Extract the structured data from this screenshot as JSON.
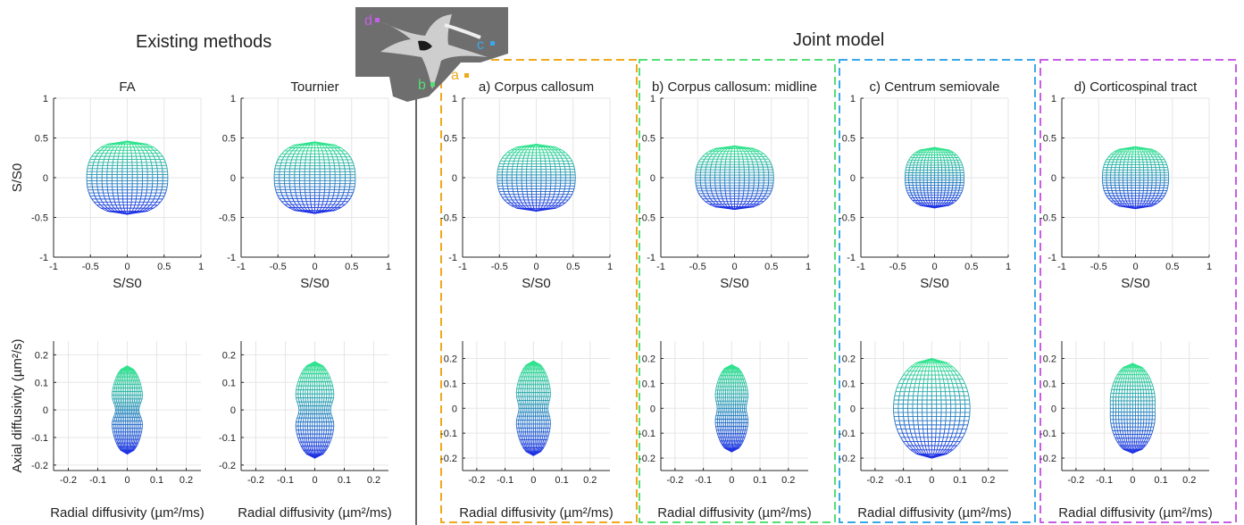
{
  "headings": {
    "existing": "Existing methods",
    "joint": "Joint model"
  },
  "inset": {
    "labels": [
      "a",
      "b",
      "c",
      "d"
    ]
  },
  "colors": {
    "grid": "#e6e6e6",
    "axis": "#262626",
    "mesh_top": "#2ee88a",
    "mesh_bottom": "#1e2ee6",
    "box_a": "#f0a81c",
    "box_b": "#55de74",
    "box_c": "#3aa8e8",
    "box_d": "#c75ee8"
  },
  "chart_data": [
    {
      "id": "fa",
      "title": "FA",
      "type": "signal-surface",
      "xlabel": "S/S0",
      "ylabel": "S/S0",
      "xlim": [
        -1,
        1
      ],
      "ylim": [
        -1,
        1
      ],
      "xticks": [
        -1,
        -0.5,
        0,
        0.5,
        1
      ],
      "yticks": [
        -1,
        -0.5,
        0,
        0.5,
        1
      ],
      "shape": {
        "half_width": 0.55,
        "top": 0.46,
        "bottom": -0.46
      }
    },
    {
      "id": "tournier",
      "title": "Tournier",
      "type": "signal-surface",
      "xlabel": "S/S0",
      "ylabel": "",
      "xlim": [
        -1,
        1
      ],
      "ylim": [
        -1,
        1
      ],
      "xticks": [
        -1,
        -0.5,
        0,
        0.5,
        1
      ],
      "yticks": [
        -1,
        -0.5,
        0,
        0.5,
        1
      ],
      "shape": {
        "half_width": 0.55,
        "top": 0.45,
        "bottom": -0.45
      }
    },
    {
      "id": "a",
      "title": "a) Corpus callosum",
      "type": "signal-surface",
      "xlabel": "S/S0",
      "ylabel": "",
      "xlim": [
        -1,
        1
      ],
      "ylim": [
        -1,
        1
      ],
      "xticks": [
        -1,
        -0.5,
        0,
        0.5,
        1
      ],
      "yticks": [
        -1,
        -0.5,
        0,
        0.5,
        1
      ],
      "shape": {
        "half_width": 0.53,
        "top": 0.42,
        "bottom": -0.42
      }
    },
    {
      "id": "b",
      "title": "b) Corpus callosum: midline",
      "type": "signal-surface",
      "xlabel": "S/S0",
      "ylabel": "",
      "xlim": [
        -1,
        1
      ],
      "ylim": [
        -1,
        1
      ],
      "xticks": [
        -1,
        -0.5,
        0,
        0.5,
        1
      ],
      "yticks": [
        -1,
        -0.5,
        0,
        0.5,
        1
      ],
      "shape": {
        "half_width": 0.53,
        "top": 0.4,
        "bottom": -0.4
      }
    },
    {
      "id": "c",
      "title": "c) Centrum semiovale",
      "type": "signal-surface",
      "xlabel": "S/S0",
      "ylabel": "",
      "xlim": [
        -1,
        1
      ],
      "ylim": [
        -1,
        1
      ],
      "xticks": [
        -1,
        -0.5,
        0,
        0.5,
        1
      ],
      "yticks": [
        -1,
        -0.5,
        0,
        0.5,
        1
      ],
      "shape": {
        "half_width": 0.4,
        "top": 0.38,
        "bottom": -0.38
      }
    },
    {
      "id": "d",
      "title": "d) Corticospinal tract",
      "type": "signal-surface",
      "xlabel": "S/S0",
      "ylabel": "",
      "xlim": [
        -1,
        1
      ],
      "ylim": [
        -1,
        1
      ],
      "xticks": [
        -1,
        -0.5,
        0,
        0.5,
        1
      ],
      "yticks": [
        -1,
        -0.5,
        0,
        0.5,
        1
      ],
      "shape": {
        "half_width": 0.45,
        "top": 0.39,
        "bottom": -0.39
      }
    },
    {
      "id": "fa_diff",
      "title": "",
      "type": "diffusivity-surface",
      "xlabel": "Radial diffusivity (µm²/ms)",
      "ylabel": "Axial diffusivity (µm²/s)",
      "xlim": [
        -0.25,
        0.25
      ],
      "ylim": [
        -0.22,
        0.25
      ],
      "xticks": [
        -0.2,
        -0.1,
        0,
        0.1,
        0.2
      ],
      "yticks": [
        -0.2,
        -0.1,
        0,
        0.1,
        0.2
      ],
      "shape": {
        "half_width": 0.056,
        "top": 0.16,
        "bottom": -0.16,
        "waist": 0.3
      }
    },
    {
      "id": "tournier_diff",
      "title": "",
      "type": "diffusivity-surface",
      "xlabel": "Radial diffusivity (µm²/ms)",
      "ylabel": "",
      "xlim": [
        -0.25,
        0.25
      ],
      "ylim": [
        -0.22,
        0.25
      ],
      "xticks": [
        -0.2,
        -0.1,
        0,
        0.1,
        0.2
      ],
      "yticks": [
        -0.2,
        -0.1,
        0,
        0.1,
        0.2
      ],
      "shape": {
        "half_width": 0.07,
        "top": 0.175,
        "bottom": -0.175,
        "waist": 0.24
      }
    },
    {
      "id": "a_diff",
      "title": "",
      "type": "diffusivity-surface",
      "xlabel": "Radial diffusivity (µm²/ms)",
      "ylabel": "",
      "xlim": [
        -0.25,
        0.27
      ],
      "ylim": [
        -0.25,
        0.27
      ],
      "xticks": [
        -0.2,
        -0.1,
        0,
        0.1,
        0.2
      ],
      "yticks": [
        -0.2,
        -0.1,
        0,
        0.1,
        0.2
      ],
      "shape": {
        "half_width": 0.065,
        "top": 0.19,
        "bottom": -0.19,
        "waist": 0.22
      }
    },
    {
      "id": "b_diff",
      "title": "",
      "type": "diffusivity-surface",
      "xlabel": "Radial diffusivity (µm²/ms)",
      "ylabel": "",
      "xlim": [
        -0.25,
        0.27
      ],
      "ylim": [
        -0.25,
        0.27
      ],
      "xticks": [
        -0.2,
        -0.1,
        0,
        0.1,
        0.2
      ],
      "yticks": [
        -0.2,
        -0.1,
        0,
        0.1,
        0.2
      ],
      "shape": {
        "half_width": 0.062,
        "top": 0.175,
        "bottom": -0.175,
        "waist": 0.18
      }
    },
    {
      "id": "c_diff",
      "title": "",
      "type": "diffusivity-surface",
      "xlabel": "Radial diffusivity (µm²/ms)",
      "ylabel": "",
      "xlim": [
        -0.25,
        0.27
      ],
      "ylim": [
        -0.25,
        0.27
      ],
      "xticks": [
        -0.2,
        -0.1,
        0,
        0.1,
        0.2
      ],
      "yticks": [
        -0.2,
        -0.1,
        0,
        0.1,
        0.2
      ],
      "shape": {
        "half_width": 0.135,
        "top": 0.2,
        "bottom": -0.2,
        "waist": 0
      }
    },
    {
      "id": "d_diff",
      "title": "",
      "type": "diffusivity-surface",
      "xlabel": "Radial diffusivity (µm²/ms)",
      "ylabel": "",
      "xlim": [
        -0.25,
        0.27
      ],
      "ylim": [
        -0.25,
        0.27
      ],
      "xticks": [
        -0.2,
        -0.1,
        0,
        0.1,
        0.2
      ],
      "yticks": [
        -0.2,
        -0.1,
        0,
        0.1,
        0.2
      ],
      "shape": {
        "half_width": 0.082,
        "top": 0.18,
        "bottom": -0.18,
        "waist": 0.04
      }
    }
  ]
}
